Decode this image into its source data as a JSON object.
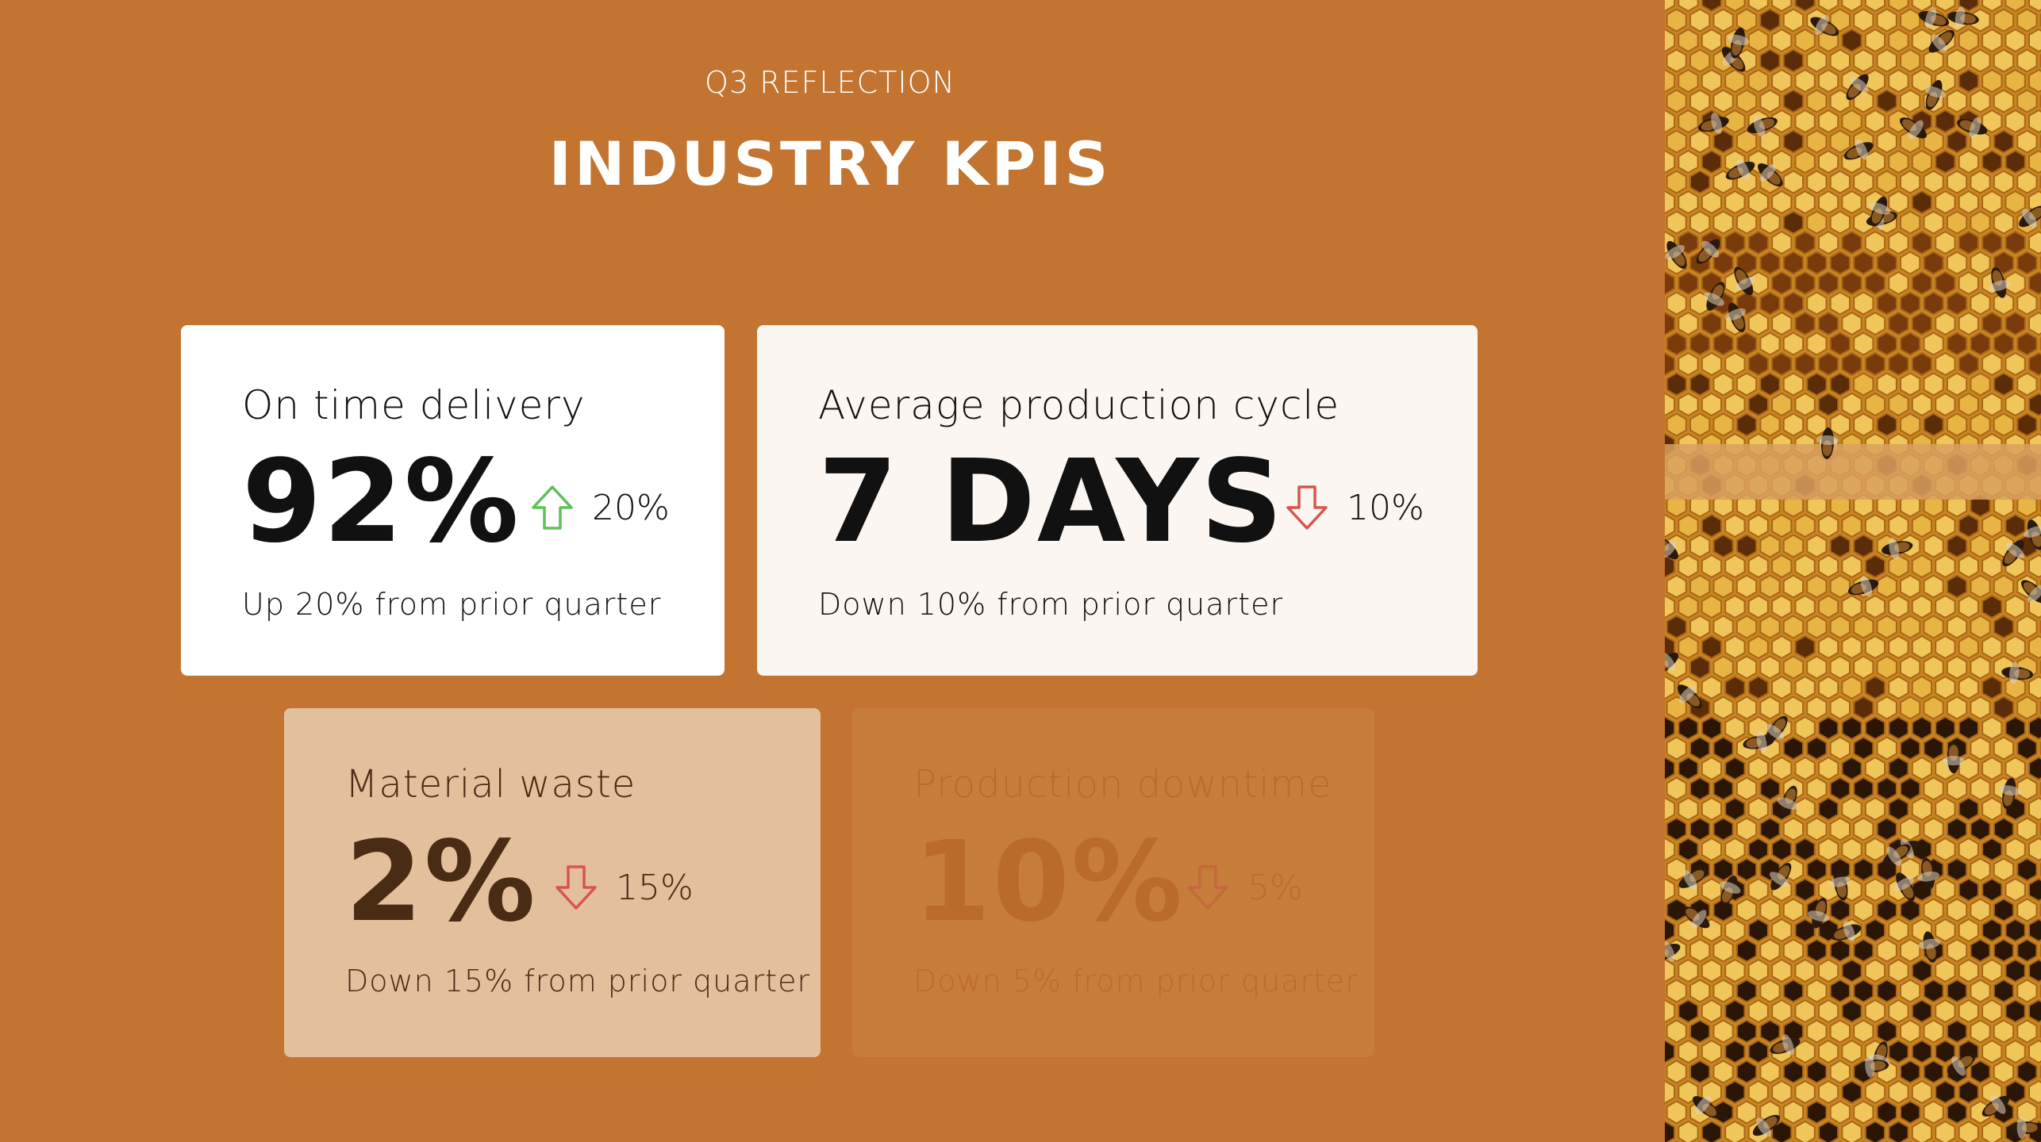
{
  "eyebrow": "Q3 REFLECTION",
  "title": "INDUSTRY KPIS",
  "colors": {
    "background": "#c27430",
    "up_arrow": "#5fbf5a",
    "down_arrow": "#d9544f"
  },
  "kpis": [
    {
      "label": "On time delivery",
      "value": "92%",
      "delta": "20%",
      "direction": "up",
      "note": "Up 20% from prior quarter"
    },
    {
      "label": "Average production cycle",
      "value": "7 DAYS",
      "delta": "10%",
      "direction": "down",
      "note": "Down 10% from prior quarter"
    },
    {
      "label": "Material waste",
      "value": "2%",
      "delta": "15%",
      "direction": "down",
      "note": "Down 15% from prior quarter"
    },
    {
      "label": "Production downtime",
      "value": "10%",
      "delta": "5%",
      "direction": "down",
      "note": "Down 5% from prior quarter"
    }
  ],
  "image": {
    "subject": "honeycomb-with-bees-photo"
  }
}
